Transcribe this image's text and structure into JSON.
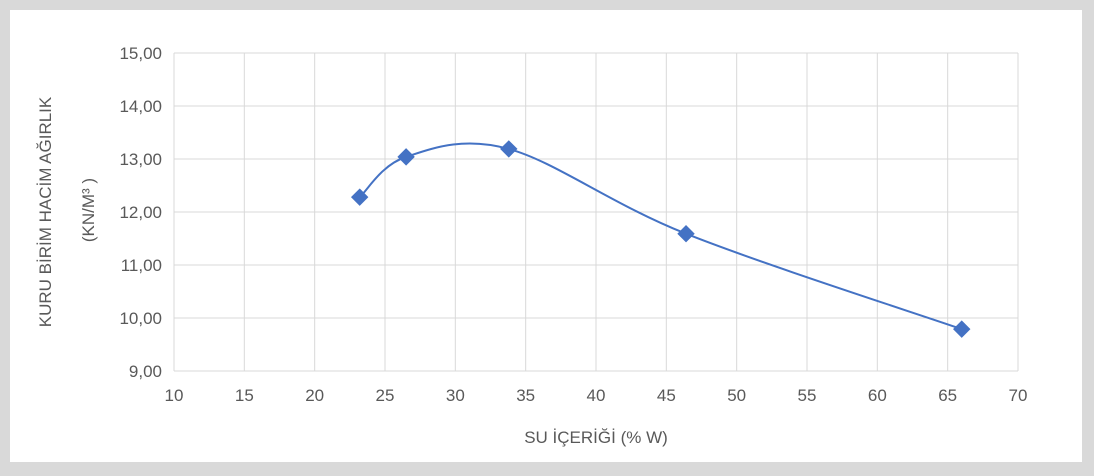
{
  "chart_data": {
    "type": "scatter",
    "smoothed": true,
    "xlabel": "SU İÇERİĞİ (% W)",
    "ylabel_line1": "KURU BİRİM HACİM AĞIRLIK",
    "ylabel_line2": "(KN/M³ )",
    "xlim": [
      10,
      70
    ],
    "ylim": [
      9,
      15
    ],
    "x_ticks": [
      "10",
      "15",
      "20",
      "25",
      "30",
      "35",
      "40",
      "45",
      "50",
      "55",
      "60",
      "65",
      "70"
    ],
    "y_ticks": [
      "9,00",
      "10,00",
      "11,00",
      "12,00",
      "13,00",
      "14,00",
      "15,00"
    ],
    "grid": true,
    "legend": "none",
    "series": [
      {
        "x": [
          23.2,
          26.5,
          33.8,
          46.4,
          66.0
        ],
        "y": [
          12.28,
          13.04,
          13.19,
          11.59,
          9.79
        ],
        "color": "#4472c4",
        "marker": "diamond"
      }
    ]
  }
}
